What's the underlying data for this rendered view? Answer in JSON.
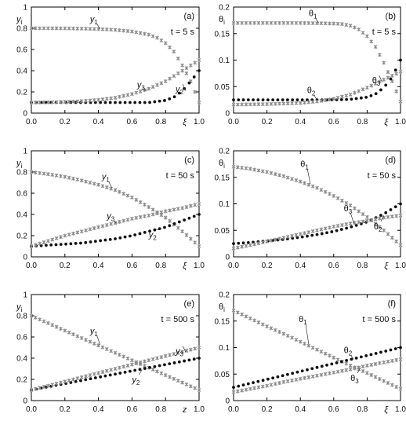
{
  "colors": {
    "gray_series": "#8a8a8a",
    "black_series": "#111111",
    "frame": "#000000"
  },
  "chart_data": [
    {
      "id": "a",
      "type": "scatter",
      "panel_label": "(a)",
      "time_label": "t = 5 s",
      "ylabel": "y_i",
      "xlabel": "ξ",
      "xlim": [
        0,
        1
      ],
      "ylim": [
        0,
        1
      ],
      "xticks": [
        "0.0",
        "0.2",
        "0.4",
        "0.6",
        "0.8",
        "1.0"
      ],
      "yticks": [
        "0",
        "0.2",
        "0.4",
        "0.6",
        "0.8",
        "1"
      ],
      "series": [
        {
          "name": "y1",
          "color": "gray",
          "marker": "star",
          "x": [
            0,
            0.1,
            0.2,
            0.3,
            0.4,
            0.5,
            0.6,
            0.7,
            0.75,
            0.8,
            0.85,
            0.9,
            0.95,
            1.0
          ],
          "y": [
            0.8,
            0.8,
            0.799,
            0.797,
            0.793,
            0.785,
            0.77,
            0.74,
            0.71,
            0.66,
            0.58,
            0.45,
            0.3,
            0.1
          ]
        },
        {
          "name": "y2",
          "color": "black",
          "marker": "dot",
          "x": [
            0,
            0.2,
            0.4,
            0.5,
            0.6,
            0.7,
            0.75,
            0.8,
            0.85,
            0.9,
            0.95,
            1.0
          ],
          "y": [
            0.1,
            0.1,
            0.1,
            0.1,
            0.1,
            0.1,
            0.11,
            0.12,
            0.15,
            0.21,
            0.3,
            0.4
          ]
        },
        {
          "name": "y3",
          "color": "gray",
          "marker": "star",
          "x": [
            0,
            0.1,
            0.2,
            0.3,
            0.4,
            0.5,
            0.6,
            0.7,
            0.8,
            0.9,
            1.0
          ],
          "y": [
            0.1,
            0.102,
            0.106,
            0.113,
            0.125,
            0.145,
            0.18,
            0.23,
            0.3,
            0.4,
            0.5
          ]
        }
      ],
      "labels": [
        {
          "series": "y1",
          "text": "y",
          "sub": "1"
        },
        {
          "series": "y2",
          "text": "y",
          "sub": "2"
        },
        {
          "series": "y3",
          "text": "y",
          "sub": "3"
        }
      ]
    },
    {
      "id": "b",
      "type": "scatter",
      "panel_label": "(b)",
      "time_label": "t = 5 s",
      "ylabel": "θ_i",
      "xlabel": "ξ",
      "xlim": [
        0,
        1
      ],
      "ylim": [
        0,
        0.2
      ],
      "xticks": [
        "0.0",
        "0.2",
        "0.4",
        "0.6",
        "0.8",
        "1.0"
      ],
      "yticks": [
        "0",
        "0.05",
        "0.1",
        "0.15",
        "0.2"
      ],
      "series": [
        {
          "name": "θ1",
          "color": "gray",
          "marker": "star",
          "x": [
            0,
            0.2,
            0.4,
            0.5,
            0.6,
            0.65,
            0.7,
            0.75,
            0.8,
            0.85,
            0.9,
            0.95,
            1.0
          ],
          "y": [
            0.17,
            0.17,
            0.17,
            0.1695,
            0.169,
            0.168,
            0.165,
            0.158,
            0.145,
            0.125,
            0.095,
            0.06,
            0.022
          ]
        },
        {
          "name": "θ2",
          "color": "black",
          "marker": "dot",
          "x": [
            0,
            0.2,
            0.4,
            0.6,
            0.7,
            0.8,
            0.85,
            0.9,
            0.95,
            1.0
          ],
          "y": [
            0.025,
            0.025,
            0.025,
            0.025,
            0.026,
            0.03,
            0.036,
            0.048,
            0.068,
            0.1
          ]
        },
        {
          "name": "θ3",
          "color": "gray",
          "marker": "star",
          "x": [
            0,
            0.2,
            0.4,
            0.5,
            0.6,
            0.7,
            0.8,
            0.9,
            1.0
          ],
          "y": [
            0.016,
            0.017,
            0.019,
            0.022,
            0.027,
            0.035,
            0.048,
            0.063,
            0.078
          ]
        }
      ],
      "labels": [
        {
          "series": "θ1",
          "text": "θ",
          "sub": "1"
        },
        {
          "series": "θ2",
          "text": "θ",
          "sub": "2"
        },
        {
          "series": "θ3",
          "text": "θ",
          "sub": "3"
        }
      ]
    },
    {
      "id": "c",
      "type": "scatter",
      "panel_label": "(c)",
      "time_label": "t = 50 s",
      "ylabel": "y_i",
      "xlabel": "ξ",
      "xlim": [
        0,
        1
      ],
      "ylim": [
        0,
        1
      ],
      "xticks": [
        "0.0",
        "0.2",
        "0.4",
        "0.6",
        "0.8",
        "1.0"
      ],
      "yticks": [
        "0",
        "0.2",
        "0.4",
        "0.6",
        "0.8",
        "1"
      ],
      "series": [
        {
          "name": "y1",
          "color": "gray",
          "marker": "star",
          "x": [
            0,
            0.1,
            0.2,
            0.3,
            0.4,
            0.5,
            0.6,
            0.7,
            0.8,
            0.9,
            1.0
          ],
          "y": [
            0.8,
            0.78,
            0.755,
            0.72,
            0.68,
            0.63,
            0.56,
            0.47,
            0.37,
            0.24,
            0.1
          ]
        },
        {
          "name": "y2",
          "color": "black",
          "marker": "dot",
          "x": [
            0,
            0.1,
            0.2,
            0.3,
            0.4,
            0.5,
            0.6,
            0.7,
            0.8,
            0.9,
            1.0
          ],
          "y": [
            0.1,
            0.11,
            0.12,
            0.13,
            0.15,
            0.17,
            0.2,
            0.24,
            0.28,
            0.34,
            0.4
          ]
        },
        {
          "name": "y3",
          "color": "gray",
          "marker": "star",
          "x": [
            0,
            0.1,
            0.2,
            0.3,
            0.4,
            0.5,
            0.6,
            0.7,
            0.8,
            0.9,
            1.0
          ],
          "y": [
            0.1,
            0.15,
            0.2,
            0.24,
            0.28,
            0.32,
            0.36,
            0.39,
            0.43,
            0.46,
            0.5
          ]
        }
      ],
      "labels": [
        {
          "series": "y1",
          "text": "y",
          "sub": "1"
        },
        {
          "series": "y2",
          "text": "y",
          "sub": "2"
        },
        {
          "series": "y3",
          "text": "y",
          "sub": "3"
        }
      ]
    },
    {
      "id": "d",
      "type": "scatter",
      "panel_label": "(d)",
      "time_label": "t = 50 s",
      "ylabel": "θ_i",
      "xlabel": "ξ",
      "xlim": [
        0,
        1
      ],
      "ylim": [
        0,
        0.2
      ],
      "xticks": [
        "0.0",
        "0.2",
        "0.4",
        "0.6",
        "0.8",
        "1.0"
      ],
      "yticks": [
        "0",
        "0.05",
        "0.1",
        "0.15",
        "0.2"
      ],
      "series": [
        {
          "name": "θ1",
          "color": "gray",
          "marker": "star",
          "x": [
            0,
            0.1,
            0.2,
            0.3,
            0.4,
            0.5,
            0.6,
            0.7,
            0.8,
            0.9,
            1.0
          ],
          "y": [
            0.17,
            0.166,
            0.16,
            0.152,
            0.142,
            0.13,
            0.115,
            0.097,
            0.075,
            0.05,
            0.022
          ]
        },
        {
          "name": "θ2",
          "color": "black",
          "marker": "dot",
          "x": [
            0,
            0.1,
            0.2,
            0.3,
            0.4,
            0.5,
            0.6,
            0.7,
            0.8,
            0.9,
            1.0
          ],
          "y": [
            0.025,
            0.027,
            0.03,
            0.033,
            0.037,
            0.042,
            0.048,
            0.056,
            0.066,
            0.081,
            0.1
          ]
        },
        {
          "name": "θ3",
          "color": "gray",
          "marker": "star",
          "x": [
            0,
            0.1,
            0.2,
            0.3,
            0.4,
            0.5,
            0.6,
            0.7,
            0.8,
            0.9,
            1.0
          ],
          "y": [
            0.016,
            0.022,
            0.029,
            0.036,
            0.043,
            0.05,
            0.057,
            0.063,
            0.068,
            0.074,
            0.078
          ]
        }
      ],
      "labels": [
        {
          "series": "θ1",
          "text": "θ",
          "sub": "1"
        },
        {
          "series": "θ2",
          "text": "θ",
          "sub": "2"
        },
        {
          "series": "θ3",
          "text": "θ",
          "sub": "3"
        }
      ]
    },
    {
      "id": "e",
      "type": "scatter",
      "panel_label": "(e)",
      "time_label": "t = 500 s",
      "ylabel": "y_i",
      "xlabel": "z",
      "xlim": [
        0,
        1
      ],
      "ylim": [
        0,
        1
      ],
      "xticks": [
        "0.0",
        "0.2",
        "0.4",
        "0.6",
        "0.8",
        "1.0"
      ],
      "yticks": [
        "0",
        "0.2",
        "0.4",
        "0.6",
        "0.8",
        "1"
      ],
      "series": [
        {
          "name": "y1",
          "color": "gray",
          "marker": "star",
          "x": [
            0,
            0.1,
            0.2,
            0.3,
            0.4,
            0.5,
            0.6,
            0.7,
            0.8,
            0.9,
            1.0
          ],
          "y": [
            0.8,
            0.73,
            0.66,
            0.59,
            0.52,
            0.45,
            0.38,
            0.31,
            0.24,
            0.17,
            0.1
          ]
        },
        {
          "name": "y2",
          "color": "black",
          "marker": "dot",
          "x": [
            0,
            0.1,
            0.2,
            0.3,
            0.4,
            0.5,
            0.6,
            0.7,
            0.8,
            0.9,
            1.0
          ],
          "y": [
            0.1,
            0.13,
            0.16,
            0.19,
            0.22,
            0.25,
            0.28,
            0.31,
            0.34,
            0.37,
            0.4
          ]
        },
        {
          "name": "y3",
          "color": "gray",
          "marker": "star",
          "x": [
            0,
            0.1,
            0.2,
            0.3,
            0.4,
            0.5,
            0.6,
            0.7,
            0.8,
            0.9,
            1.0
          ],
          "y": [
            0.1,
            0.14,
            0.18,
            0.22,
            0.26,
            0.3,
            0.34,
            0.38,
            0.42,
            0.46,
            0.5
          ]
        }
      ],
      "labels": [
        {
          "series": "y1",
          "text": "y",
          "sub": "1"
        },
        {
          "series": "y2",
          "text": "y",
          "sub": "2"
        },
        {
          "series": "y3",
          "text": "y",
          "sub": "3"
        }
      ]
    },
    {
      "id": "f",
      "type": "scatter",
      "panel_label": "(f)",
      "time_label": "t = 500 s",
      "ylabel": "θ_i",
      "xlabel": "ξ",
      "xlim": [
        0,
        1
      ],
      "ylim": [
        0,
        0.2
      ],
      "xticks": [
        "0.0",
        "0.2",
        "0.4",
        "0.6",
        "0.8",
        "1.0"
      ],
      "yticks": [
        "0",
        "0.05",
        "0.1",
        "0.15",
        "0.2"
      ],
      "series": [
        {
          "name": "θ1",
          "color": "gray",
          "marker": "star",
          "x": [
            0,
            0.1,
            0.2,
            0.3,
            0.4,
            0.5,
            0.6,
            0.7,
            0.8,
            0.9,
            1.0
          ],
          "y": [
            0.17,
            0.155,
            0.14,
            0.126,
            0.111,
            0.096,
            0.081,
            0.066,
            0.052,
            0.037,
            0.022
          ]
        },
        {
          "name": "θ2",
          "color": "black",
          "marker": "dot",
          "x": [
            0,
            0.1,
            0.2,
            0.3,
            0.4,
            0.5,
            0.6,
            0.7,
            0.8,
            0.9,
            1.0
          ],
          "y": [
            0.025,
            0.0325,
            0.04,
            0.0475,
            0.055,
            0.0625,
            0.07,
            0.0775,
            0.085,
            0.0925,
            0.1
          ]
        },
        {
          "name": "θ3",
          "color": "gray",
          "marker": "star",
          "x": [
            0,
            0.1,
            0.2,
            0.3,
            0.4,
            0.5,
            0.6,
            0.7,
            0.8,
            0.9,
            1.0
          ],
          "y": [
            0.016,
            0.022,
            0.028,
            0.035,
            0.041,
            0.047,
            0.053,
            0.059,
            0.066,
            0.072,
            0.078
          ]
        }
      ],
      "labels": [
        {
          "series": "θ1",
          "text": "θ",
          "sub": "1"
        },
        {
          "series": "θ2",
          "text": "θ",
          "sub": "2"
        },
        {
          "series": "θ3",
          "text": "θ",
          "sub": "3"
        }
      ]
    }
  ]
}
